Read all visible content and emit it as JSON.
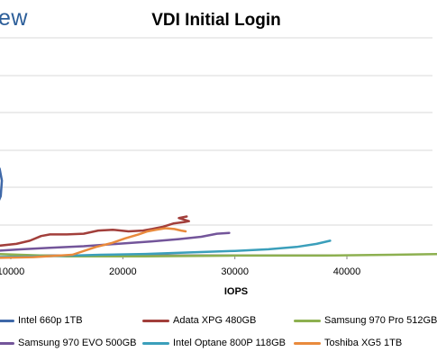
{
  "watermark": "ew",
  "chart_data": {
    "type": "line",
    "title": "VDI Initial Login",
    "xlabel": "IOPS",
    "ylabel": "",
    "x_ticks": [
      10000,
      20000,
      30000,
      40000
    ],
    "xlim": [
      9000,
      48600
    ],
    "ylim": [
      0,
      280
    ],
    "grid": true,
    "legend_position": "bottom",
    "series": [
      {
        "name": "Intel 660p 1TB",
        "color": "#3f68a8",
        "points": [
          [
            8600,
            160
          ],
          [
            9000,
            170
          ],
          [
            9200,
            185
          ],
          [
            9100,
            205
          ],
          [
            8800,
            215
          ],
          [
            8500,
            218
          ]
        ]
      },
      {
        "name": "Adata XPG 480GB",
        "color": "#a23f3b",
        "points": [
          [
            8500,
            269
          ],
          [
            10500,
            266
          ],
          [
            11700,
            262
          ],
          [
            12700,
            256
          ],
          [
            13500,
            254
          ],
          [
            15000,
            254
          ],
          [
            16500,
            253
          ],
          [
            17800,
            249
          ],
          [
            19100,
            248
          ],
          [
            20500,
            250
          ],
          [
            21800,
            249
          ],
          [
            22600,
            247
          ],
          [
            23600,
            244
          ],
          [
            24500,
            240
          ],
          [
            25500,
            238
          ],
          [
            25900,
            237
          ],
          [
            25000,
            233
          ],
          [
            25700,
            231
          ]
        ]
      },
      {
        "name": "Samsung 970 Pro 512GB",
        "color": "#8db050",
        "points": [
          [
            8500,
            279
          ],
          [
            15000,
            282
          ],
          [
            22000,
            282
          ],
          [
            30000,
            281
          ],
          [
            38000,
            281
          ],
          [
            44000,
            280
          ],
          [
            48600,
            279
          ]
        ]
      },
      {
        "name": "Samsung 970 EVO 500GB",
        "color": "#73559a",
        "points": [
          [
            8500,
            275
          ],
          [
            11000,
            273
          ],
          [
            13500,
            271
          ],
          [
            16500,
            269
          ],
          [
            19500,
            266
          ],
          [
            22500,
            263
          ],
          [
            25000,
            260
          ],
          [
            27000,
            257
          ],
          [
            28400,
            253
          ],
          [
            29500,
            252
          ]
        ]
      },
      {
        "name": "Intel Optane 800P 118GB",
        "color": "#3b9fbb",
        "points": [
          [
            8500,
            283
          ],
          [
            13000,
            282
          ],
          [
            18000,
            280
          ],
          [
            22000,
            279
          ],
          [
            26000,
            277
          ],
          [
            30000,
            275
          ],
          [
            33000,
            273
          ],
          [
            35500,
            270
          ],
          [
            37300,
            266
          ],
          [
            38500,
            262
          ]
        ]
      },
      {
        "name": "Toshiba XG5 1TB",
        "color": "#e98a3c",
        "points": [
          [
            8500,
            284
          ],
          [
            12000,
            283
          ],
          [
            15500,
            280
          ],
          [
            17600,
            270
          ],
          [
            19000,
            265
          ],
          [
            20200,
            259
          ],
          [
            21400,
            254
          ],
          [
            22200,
            250
          ],
          [
            23000,
            248
          ],
          [
            23800,
            246
          ],
          [
            24600,
            247
          ],
          [
            25200,
            249
          ],
          [
            25600,
            250
          ]
        ]
      }
    ]
  }
}
